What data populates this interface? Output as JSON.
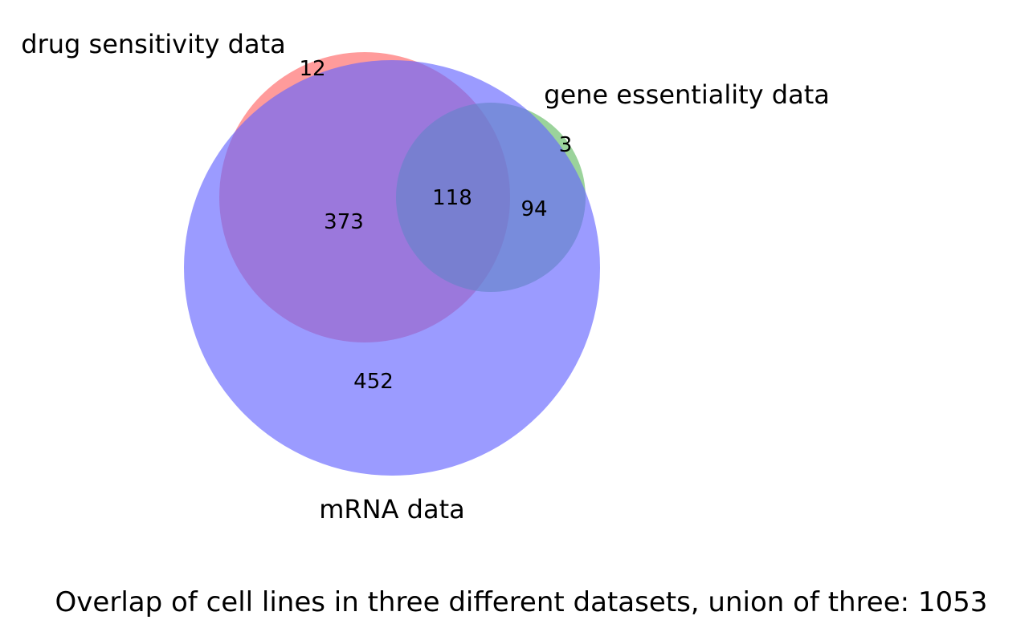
{
  "sets": {
    "drug": {
      "label": "drug sensitivity data",
      "color": "#ff6666"
    },
    "gene": {
      "label": "gene essentiality data",
      "color": "#66bb66"
    },
    "mrna": {
      "label": "mRNA data",
      "color": "#6666ff"
    }
  },
  "regions": {
    "drug_only": "12",
    "gene_only": "3",
    "drug_mrna": "373",
    "drug_gene_mrna": "118",
    "gene_mrna": "94",
    "mrna_only": "452"
  },
  "caption": "Overlap of cell lines in three different datasets, union of three: 1053"
}
